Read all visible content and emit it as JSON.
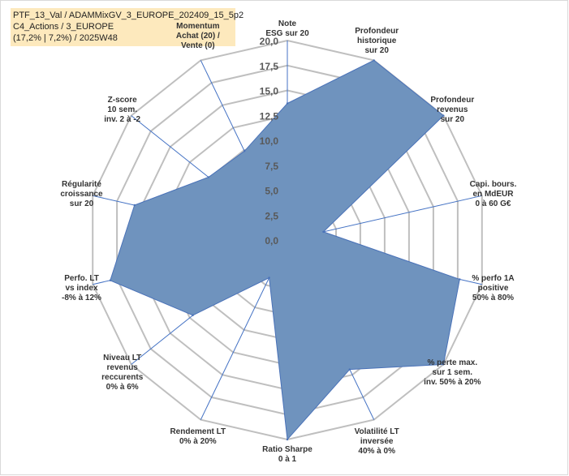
{
  "header": {
    "title_line1": "PTF_13_Val / ADAMMixGV_3_EUROPE_202409_15_5p2",
    "title_line2": "C4_Actions / 3_EUROPE",
    "title_line3": "(17,2% | 7,2%) / 2025W48"
  },
  "chart_data": {
    "type": "radar",
    "rmin": 0,
    "rmax": 20,
    "tick_values": [
      0,
      2.5,
      5,
      7.5,
      10,
      12.5,
      15,
      17.5,
      20
    ],
    "tick_labels": [
      "0,0",
      "2,5",
      "5,0",
      "7,5",
      "10,0",
      "12,5",
      "15,0",
      "17,5",
      "20,0"
    ],
    "grid": true,
    "colors": {
      "fill": "#6f93be",
      "stroke": "#4a72b8",
      "grid": "#bfbfbf",
      "axis": "#4472c4"
    },
    "axes": [
      {
        "label": [
          "Note",
          "ESG sur 20"
        ],
        "value": 13.7
      },
      {
        "label": [
          "Profondeur",
          "historique",
          "sur 20"
        ],
        "value": 20
      },
      {
        "label": [
          "Profondeur",
          "revenus",
          "sur 20"
        ],
        "value": 20
      },
      {
        "label": [
          "Capi. bours.",
          "en MdEUR",
          "0 à 60 G€"
        ],
        "value": 3.7
      },
      {
        "label": [
          "% perfo 1A",
          "positive",
          "50% à 80%"
        ],
        "value": 17.7
      },
      {
        "label": [
          "% perte max.",
          "sur 1 sem.",
          "inv. 50% à 20%"
        ],
        "value": 20
      },
      {
        "label": [
          "Volatilité LT",
          "inversée",
          "40% à 0%"
        ],
        "value": 14.4
      },
      {
        "label": [
          "Ratio Sharpe",
          "0 à 1"
        ],
        "value": 20
      },
      {
        "label": [
          "Rendement LT",
          "0% à 20%"
        ],
        "value": 4.2
      },
      {
        "label": [
          "Niveau LT",
          "revenus",
          "reccurents",
          "0% à 6%"
        ],
        "value": 12.1
      },
      {
        "label": [
          "Perfo. LT",
          "vs index",
          "-8% à 12%"
        ],
        "value": 18.2
      },
      {
        "label": [
          "Régularité",
          "croissance",
          "sur 20"
        ],
        "value": 15.7
      },
      {
        "label": [
          "Z-score",
          "10 sem.",
          "inv. 2 à -2"
        ],
        "value": 10.1
      },
      {
        "label": [
          "Momentum",
          "Achat (20) /",
          "Vente (0)"
        ],
        "value": 9.9
      }
    ]
  }
}
